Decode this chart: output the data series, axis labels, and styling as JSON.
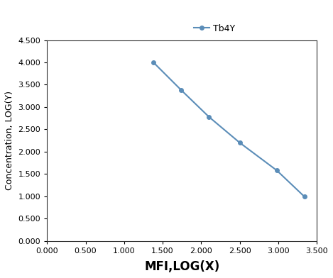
{
  "x": [
    1.38,
    1.74,
    2.1,
    2.5,
    2.98,
    3.34
  ],
  "y": [
    4.0,
    3.38,
    2.78,
    2.2,
    1.58,
    0.99
  ],
  "line_color": "#5b8db8",
  "marker": "o",
  "marker_size": 4,
  "legend_label": "Tb4Y",
  "xlabel": "MFI,LOG(X)",
  "ylabel": "Concentration, LOG(Y)",
  "xlim": [
    0.0,
    3.5
  ],
  "ylim": [
    0.0,
    4.5
  ],
  "xticks": [
    0.0,
    0.5,
    1.0,
    1.5,
    2.0,
    2.5,
    3.0,
    3.5
  ],
  "yticks": [
    0.0,
    0.5,
    1.0,
    1.5,
    2.0,
    2.5,
    3.0,
    3.5,
    4.0,
    4.5
  ],
  "xlabel_fontsize": 12,
  "ylabel_fontsize": 9,
  "tick_fontsize": 8,
  "legend_fontsize": 9,
  "background_color": "#ffffff",
  "spine_color": "#2f2f2f",
  "figure_width": 4.69,
  "figure_height": 3.92
}
